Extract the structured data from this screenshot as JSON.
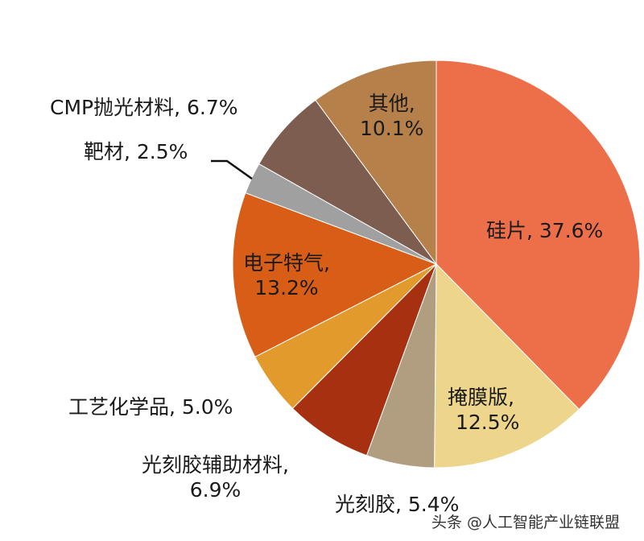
{
  "chart_data": {
    "type": "pie",
    "title": "",
    "start_angle_deg": 0,
    "direction": "clockwise",
    "slices": [
      {
        "label": "硅片",
        "value": 37.6,
        "color": "#EC6F4A",
        "text": "硅片, 37.6%"
      },
      {
        "label": "掩膜版",
        "value": 12.5,
        "color": "#EDD68B",
        "text_line1": "掩膜版,",
        "text_line2": "12.5%"
      },
      {
        "label": "光刻胶",
        "value": 5.4,
        "color": "#B19E80",
        "text": "光刻胶, 5.4%"
      },
      {
        "label": "光刻胶辅助材料",
        "value": 6.9,
        "color": "#A6300F",
        "text_line1": "光刻胶辅助材料,",
        "text_line2": "6.9%"
      },
      {
        "label": "工艺化学品",
        "value": 5.0,
        "color": "#E39A2C",
        "text": "工艺化学品, 5.0%"
      },
      {
        "label": "电子特气",
        "value": 13.2,
        "color": "#D85E17",
        "text_line1": "电子特气,",
        "text_line2": "13.2%"
      },
      {
        "label": "靶材",
        "value": 2.5,
        "color": "#A0A0A0",
        "text": "靶材, 2.5%"
      },
      {
        "label": "CMP抛光材料",
        "value": 6.7,
        "color": "#7E5D51",
        "text": "CMP抛光材料, 6.7%"
      },
      {
        "label": "其他",
        "value": 10.1,
        "color": "#B6804A",
        "text_line1": "其他,",
        "text_line2": "10.1%"
      }
    ],
    "unit": "%",
    "legend": "none (data labels on/next to slices)"
  },
  "watermark": "头条 @人工智能产业链联盟"
}
